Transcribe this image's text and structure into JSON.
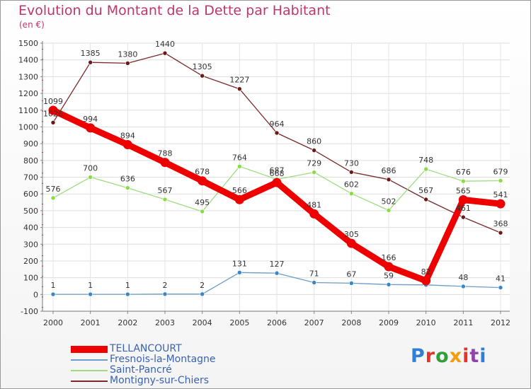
{
  "title": "Evolution du Montant de la Dette par Habitant",
  "unit": "(en €)",
  "logo": "Proxiti",
  "chart_data": {
    "type": "line",
    "x": [
      "2000",
      "2001",
      "2002",
      "2003",
      "2004",
      "2005",
      "2006",
      "2007",
      "2008",
      "2009",
      "2010",
      "2011",
      "2012"
    ],
    "ylim": [
      -100,
      1500
    ],
    "yticks": [
      -100,
      0,
      100,
      200,
      300,
      400,
      500,
      600,
      700,
      800,
      900,
      1000,
      1100,
      1200,
      1300,
      1400,
      1500
    ],
    "grid": true,
    "legend": "bottom",
    "series": [
      {
        "name": "TELLANCOURT",
        "color": "#ee0000",
        "values": [
          1099,
          994,
          894,
          788,
          678,
          566,
          668,
          481,
          305,
          166,
          82,
          565,
          541
        ]
      },
      {
        "name": "Fresnois-la-Montagne",
        "color": "#7aa6cc",
        "values": [
          1,
          1,
          1,
          2,
          2,
          131,
          127,
          71,
          67,
          59,
          57,
          48,
          41
        ],
        "labels": [
          "1",
          "1",
          "1",
          "2",
          "2",
          "131",
          "127",
          "71",
          "67",
          "59",
          "",
          "48",
          "41"
        ]
      },
      {
        "name": "Saint-Pancré",
        "color": "#99dd77",
        "values": [
          576,
          700,
          636,
          567,
          495,
          764,
          687,
          729,
          602,
          502,
          748,
          676,
          679
        ]
      },
      {
        "name": "Montigny-sur-Chiers",
        "color": "#7a2a2a",
        "values": [
          1026,
          1385,
          1380,
          1440,
          1305,
          1227,
          964,
          860,
          730,
          686,
          567,
          461,
          368
        ]
      }
    ]
  }
}
